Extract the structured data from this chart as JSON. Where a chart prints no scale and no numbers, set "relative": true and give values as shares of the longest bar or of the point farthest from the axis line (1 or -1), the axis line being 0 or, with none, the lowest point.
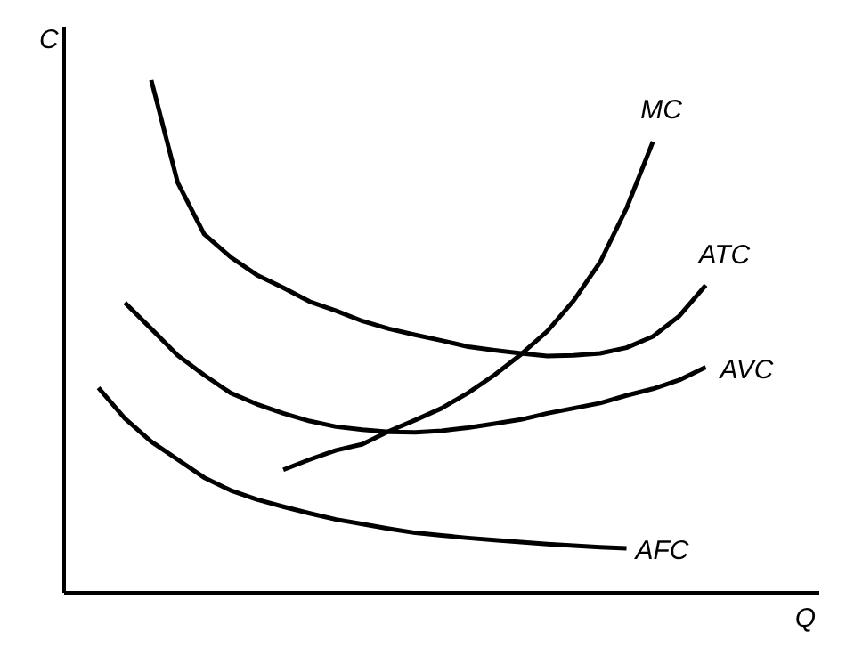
{
  "chart_data": {
    "type": "line",
    "relative": true,
    "xlabel": "Q",
    "ylabel": "C",
    "tick_labels": false,
    "grid": false,
    "legend": false,
    "marker": "none",
    "line_style": "solid",
    "categories": [
      null,
      null,
      null,
      null,
      null,
      null,
      null,
      null,
      null,
      null,
      null,
      null,
      null,
      null,
      null,
      null,
      null,
      null,
      null,
      null,
      null,
      null,
      null,
      null
    ],
    "series": [
      {
        "name": "MC",
        "color": "#000000",
        "values": [
          null,
          null,
          null,
          null,
          null,
          null,
          null,
          0.24,
          0.26,
          0.278,
          0.29,
          0.315,
          0.337,
          0.36,
          0.39,
          0.425,
          0.465,
          0.51,
          0.57,
          0.645,
          0.75,
          0.88,
          null,
          null
        ]
      },
      {
        "name": "ATC",
        "color": "#000000",
        "values": [
          null,
          null,
          1.0,
          0.8,
          0.7,
          0.655,
          0.62,
          0.595,
          0.568,
          0.55,
          0.53,
          0.515,
          0.503,
          0.492,
          0.48,
          0.473,
          0.467,
          0.462,
          0.463,
          0.467,
          0.478,
          0.5,
          0.54,
          0.6
        ]
      },
      {
        "name": "AVC",
        "color": "#000000",
        "values": [
          null,
          0.566,
          0.515,
          0.463,
          0.425,
          0.39,
          0.368,
          0.35,
          0.335,
          0.324,
          0.318,
          0.314,
          0.313,
          0.316,
          0.322,
          0.33,
          0.338,
          0.35,
          0.36,
          0.37,
          0.385,
          0.398,
          0.415,
          0.44
        ]
      },
      {
        "name": "AFC",
        "color": "#000000",
        "values": [
          0.4,
          0.34,
          0.295,
          0.26,
          0.225,
          0.2,
          0.182,
          0.168,
          0.155,
          0.143,
          0.134,
          0.125,
          0.117,
          0.112,
          0.107,
          0.103,
          0.099,
          0.095,
          0.092,
          0.089,
          0.087,
          null,
          null,
          null
        ]
      }
    ]
  }
}
